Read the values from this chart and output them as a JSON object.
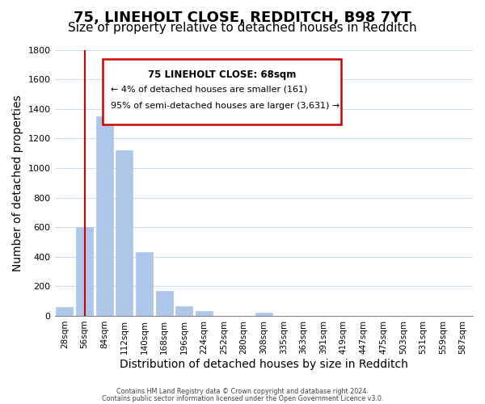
{
  "title": "75, LINEHOLT CLOSE, REDDITCH, B98 7YT",
  "subtitle": "Size of property relative to detached houses in Redditch",
  "xlabel": "Distribution of detached houses by size in Redditch",
  "ylabel": "Number of detached properties",
  "bin_labels": [
    "28sqm",
    "56sqm",
    "84sqm",
    "112sqm",
    "140sqm",
    "168sqm",
    "196sqm",
    "224sqm",
    "252sqm",
    "280sqm",
    "308sqm",
    "335sqm",
    "363sqm",
    "391sqm",
    "419sqm",
    "447sqm",
    "475sqm",
    "503sqm",
    "531sqm",
    "559sqm",
    "587sqm"
  ],
  "bar_values": [
    60,
    600,
    1350,
    1120,
    430,
    170,
    65,
    35,
    0,
    0,
    20,
    0,
    0,
    0,
    0,
    0,
    0,
    0,
    0,
    0,
    0
  ],
  "bar_color": "#aec6e8",
  "marker_line_bin": 1,
  "annotation_title": "75 LINEHOLT CLOSE: 68sqm",
  "annotation_line1": "← 4% of detached houses are smaller (161)",
  "annotation_line2": "95% of semi-detached houses are larger (3,631) →",
  "ylim": [
    0,
    1800
  ],
  "yticks": [
    0,
    200,
    400,
    600,
    800,
    1000,
    1200,
    1400,
    1600,
    1800
  ],
  "footer1": "Contains HM Land Registry data © Crown copyright and database right 2024.",
  "footer2": "Contains public sector information licensed under the Open Government Licence v3.0.",
  "fig_bg": "#ffffff",
  "ax_bg": "#ffffff",
  "grid_color": "#ccddee",
  "box_edge_color": "#cc0000",
  "marker_line_color": "#cc0000",
  "title_fontsize": 13,
  "subtitle_fontsize": 11,
  "xlabel_fontsize": 10,
  "ylabel_fontsize": 10
}
